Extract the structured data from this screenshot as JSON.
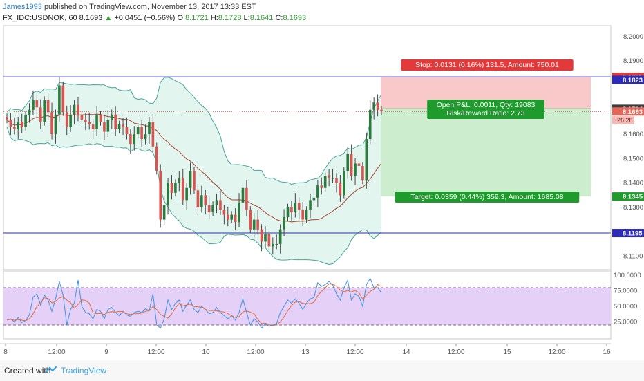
{
  "header": {
    "author": "James1993",
    "published": "published on TradingView.com, November 13, 2017 13:33 EST"
  },
  "symbol_line": {
    "symbol": "FX_IDC:USDNOK, 60",
    "last": "8.1693",
    "change": "+0.0451 (+0.56%)",
    "o_label": "O:",
    "o": "8.1721",
    "h_label": "H:",
    "h": "8.1728",
    "l_label": "L:",
    "l": "8.1641",
    "c_label": "C:",
    "c": "8.1693"
  },
  "footer": {
    "created_with": "Created with",
    "brand": "TradingView"
  },
  "colors": {
    "up": "#2c7b3e",
    "down": "#d9534f",
    "bb_fill": "#e3f5ef",
    "bb_line": "#49a597",
    "ma_line": "#a8402c",
    "hline": "#2b2bb8",
    "stop_fill": "#f9c9c9",
    "target_fill": "#cdeece",
    "rsi_fill": "#e5d1f8",
    "rsi_line": "#3f8fe0",
    "rsi_sig": "#e06b3a"
  },
  "chart_data": [
    {
      "type": "candlestick",
      "title": "FX_IDC:USDNOK, 60",
      "x_ticks": [
        "8",
        "12:00",
        "9",
        "12:00",
        "10",
        "12:00",
        "13",
        "12:00",
        "14",
        "12:00",
        "15",
        "12:00",
        "16"
      ],
      "y_ticks": [
        "8.2000",
        "8.1900",
        "8.1600",
        "8.1500",
        "8.1400",
        "8.1300",
        "8.1100"
      ],
      "ylim": [
        8.1045,
        8.2045
      ],
      "closes": [
        8.166,
        8.163,
        8.162,
        8.165,
        8.163,
        8.168,
        8.17,
        8.174,
        8.171,
        8.165,
        8.174,
        8.169,
        8.16,
        8.168,
        8.18,
        8.169,
        8.163,
        8.168,
        8.172,
        8.168,
        8.166,
        8.165,
        8.164,
        8.162,
        8.168,
        8.165,
        8.161,
        8.166,
        8.168,
        8.162,
        8.164,
        8.163,
        8.16,
        8.156,
        8.16,
        8.163,
        8.158,
        8.16,
        8.165,
        8.155,
        8.145,
        8.125,
        8.131,
        8.14,
        8.136,
        8.14,
        8.142,
        8.133,
        8.138,
        8.145,
        8.137,
        8.13,
        8.135,
        8.131,
        8.128,
        8.131,
        8.133,
        8.129,
        8.127,
        8.125,
        8.127,
        8.124,
        8.132,
        8.138,
        8.129,
        8.121,
        8.125,
        8.121,
        8.116,
        8.119,
        8.114,
        8.115,
        8.115,
        8.121,
        8.126,
        8.13,
        8.128,
        8.132,
        8.129,
        8.125,
        8.129,
        8.133,
        8.134,
        8.139,
        8.138,
        8.143,
        8.142,
        8.142,
        8.14,
        8.135,
        8.145,
        8.152,
        8.143,
        8.148,
        8.147,
        8.141,
        8.158,
        8.17,
        8.173,
        8.17,
        8.1693
      ],
      "horizontal_levels": [
        "8.1835",
        "8.1823",
        "8.1704",
        "8.1693",
        "8.1345",
        "8.1195"
      ],
      "countdown": "26:28",
      "position": {
        "stop_label": "Stop: 0.0131 (0.16%) 131.5, Amount: 750.01",
        "open_label": "Open P&L: 0.0011, Qty: 19083",
        "rr_label": "Risk/Reward Ratio: 2.73",
        "target_label": "Target: 0.0359 (0.44%) 359.3, Amount: 1685.08"
      }
    },
    {
      "type": "line",
      "name": "RSI",
      "y_ticks": [
        "100.0000",
        "75.0000",
        "50.0000",
        "25.0000"
      ],
      "ylim": [
        0,
        100
      ],
      "upper_band": 80,
      "lower_band": 20,
      "values": [
        28,
        30,
        25,
        32,
        24,
        27,
        36,
        65,
        70,
        52,
        68,
        60,
        42,
        62,
        90,
        68,
        20,
        45,
        55,
        92,
        50,
        40,
        38,
        30,
        45,
        42,
        30,
        45,
        48,
        40,
        35,
        42,
        36,
        34,
        40,
        42,
        40,
        46,
        43,
        70,
        20,
        15,
        30,
        60,
        45,
        55,
        60,
        42,
        52,
        60,
        45,
        40,
        50,
        45,
        38,
        40,
        48,
        40,
        35,
        30,
        35,
        28,
        40,
        62,
        40,
        20,
        30,
        25,
        15,
        22,
        18,
        20,
        22,
        40,
        50,
        60,
        55,
        62,
        55,
        45,
        55,
        62,
        64,
        88,
        82,
        85,
        90,
        84,
        70,
        60,
        80,
        92,
        60,
        70,
        66,
        50,
        85,
        95,
        80,
        80,
        72
      ]
    }
  ]
}
